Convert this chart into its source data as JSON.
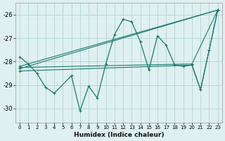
{
  "xlabel": "Humidex (Indice chaleur)",
  "bg_color": "#dff0f0",
  "grid_color": "#b8d8d8",
  "line_color": "#1a7a6e",
  "xlim": [
    -0.5,
    23.5
  ],
  "ylim": [
    -30.6,
    -25.5
  ],
  "xticks": [
    0,
    1,
    2,
    3,
    4,
    5,
    6,
    7,
    8,
    9,
    10,
    11,
    12,
    13,
    14,
    15,
    16,
    17,
    18,
    19,
    20,
    21,
    22,
    23
  ],
  "yticks": [
    -30,
    -29,
    -28,
    -27,
    -26
  ],
  "series": [
    {
      "x": [
        0,
        1,
        2,
        3,
        4,
        6,
        7,
        8,
        9,
        10,
        11,
        12,
        13,
        14,
        15,
        16,
        17,
        18,
        19,
        20,
        21,
        22,
        23
      ],
      "y": [
        -27.8,
        -28.1,
        -28.5,
        -29.1,
        -29.35,
        -28.6,
        -30.1,
        -29.05,
        -29.55,
        -28.1,
        -26.85,
        -26.2,
        -26.3,
        -27.15,
        -28.35,
        -26.9,
        -27.3,
        -28.15,
        -28.2,
        -28.15,
        -29.2,
        -27.5,
        -25.8
      ]
    },
    {
      "x": [
        0,
        23
      ],
      "y": [
        -28.2,
        -25.8
      ]
    },
    {
      "x": [
        0,
        20,
        23
      ],
      "y": [
        -28.25,
        -28.1,
        -25.8
      ]
    },
    {
      "x": [
        0,
        23
      ],
      "y": [
        -28.3,
        -25.8
      ]
    },
    {
      "x": [
        0,
        20,
        21,
        22,
        23
      ],
      "y": [
        -28.4,
        -28.15,
        -29.2,
        -27.5,
        -25.8
      ]
    }
  ]
}
